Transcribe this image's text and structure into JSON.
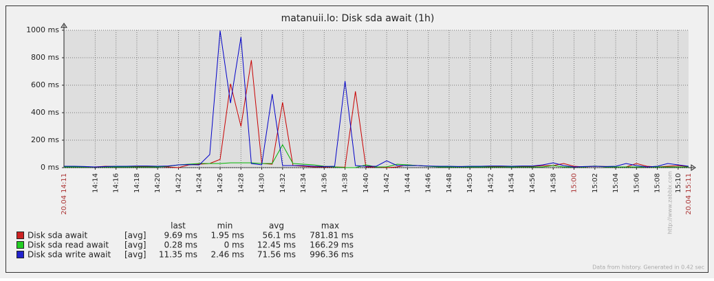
{
  "chart_data": {
    "type": "line",
    "title": "matanuii.lo: Disk sda await (1h)",
    "x": [
      "14:11",
      "14:12",
      "14:13",
      "14:14",
      "14:15",
      "14:16",
      "14:17",
      "14:18",
      "14:19",
      "14:20",
      "14:21",
      "14:22",
      "14:23",
      "14:24",
      "14:25",
      "14:26",
      "14:27",
      "14:28",
      "14:29",
      "14:30",
      "14:31",
      "14:32",
      "14:33",
      "14:34",
      "14:35",
      "14:36",
      "14:37",
      "14:38",
      "14:39",
      "14:40",
      "14:41",
      "14:42",
      "14:43",
      "14:44",
      "14:45",
      "14:46",
      "14:47",
      "14:48",
      "14:49",
      "14:50",
      "14:51",
      "14:52",
      "14:53",
      "14:54",
      "14:55",
      "14:56",
      "14:57",
      "14:58",
      "14:59",
      "15:00",
      "15:01",
      "15:02",
      "15:03",
      "15:04",
      "15:05",
      "15:06",
      "15:07",
      "15:08",
      "15:09",
      "15:10",
      "15:11"
    ],
    "series": [
      {
        "name": "Disk sda await",
        "color": "#c80000",
        "legend_color": "#cc2222",
        "function": "[avg]",
        "stats": [
          "9.69 ms",
          "1.95 ms",
          "56.1 ms",
          "781.81 ms"
        ],
        "values": [
          5,
          8,
          5,
          5,
          10,
          8,
          5,
          10,
          10,
          8,
          5,
          0,
          20,
          25,
          30,
          60,
          610,
          300,
          782,
          30,
          25,
          475,
          15,
          10,
          5,
          5,
          5,
          3,
          555,
          5,
          5,
          0,
          5,
          20,
          15,
          10,
          10,
          5,
          8,
          5,
          5,
          10,
          10,
          8,
          10,
          10,
          15,
          15,
          30,
          10,
          5,
          10,
          8,
          5,
          5,
          30,
          10,
          5,
          10,
          15,
          8
        ]
      },
      {
        "name": "Disk sda read await",
        "color": "#00b400",
        "legend_color": "#22cc22",
        "function": "[avg]",
        "stats": [
          "0.28 ms",
          "0 ms",
          "12.45 ms",
          "166.29 ms"
        ],
        "values": [
          5,
          5,
          5,
          5,
          5,
          5,
          5,
          5,
          5,
          5,
          10,
          20,
          25,
          30,
          30,
          30,
          35,
          35,
          35,
          30,
          30,
          166,
          30,
          25,
          20,
          10,
          5,
          0,
          0,
          20,
          5,
          5,
          25,
          20,
          15,
          10,
          5,
          5,
          5,
          5,
          5,
          5,
          5,
          5,
          5,
          5,
          5,
          15,
          5,
          5,
          5,
          12,
          5,
          5,
          5,
          5,
          5,
          5,
          5,
          5,
          5
        ]
      },
      {
        "name": "Disk sda write await",
        "color": "#0000c8",
        "legend_color": "#2222cc",
        "function": "[avg]",
        "stats": [
          "11.35 ms",
          "2.46 ms",
          "71.56 ms",
          "996.36 ms"
        ],
        "values": [
          10,
          10,
          8,
          5,
          8,
          10,
          10,
          12,
          12,
          10,
          12,
          20,
          22,
          20,
          95,
          996,
          470,
          950,
          30,
          20,
          535,
          15,
          15,
          15,
          10,
          8,
          10,
          630,
          15,
          10,
          10,
          50,
          15,
          15,
          15,
          12,
          10,
          10,
          8,
          10,
          10,
          12,
          12,
          10,
          12,
          12,
          20,
          35,
          15,
          5,
          8,
          10,
          8,
          10,
          30,
          15,
          5,
          10,
          30,
          20,
          10
        ]
      }
    ],
    "ylim": [
      0,
      1000
    ],
    "yticks": [
      {
        "value": 0,
        "label": "0 ms"
      },
      {
        "value": 200,
        "label": "200 ms"
      },
      {
        "value": 400,
        "label": "400 ms"
      },
      {
        "value": 600,
        "label": "600 ms"
      },
      {
        "value": 800,
        "label": "800 ms"
      },
      {
        "value": 1000,
        "label": "1000 ms"
      }
    ],
    "xticks": [
      "14:14",
      "14:16",
      "14:18",
      "14:20",
      "14:22",
      "14:24",
      "14:26",
      "14:28",
      "14:30",
      "14:32",
      "14:34",
      "14:36",
      "14:38",
      "14:40",
      "14:42",
      "14:44",
      "14:46",
      "14:48",
      "14:50",
      "14:52",
      "14:54",
      "14:56",
      "14:58",
      {
        "label": "15:00",
        "color": "#aa3333"
      },
      "15:02",
      "15:04",
      "15:06",
      "15:08",
      "15:10"
    ],
    "x_start_label": "20.04 14:11",
    "x_end_label": "20.04 15:11",
    "x_edge_label_color": "#aa3333",
    "grid": true,
    "legend_columns": [
      "last",
      "min",
      "avg",
      "max"
    ],
    "footer": "Data from history. Generated in 0.42 sec",
    "side_text": "http://www.zabbix.com"
  }
}
